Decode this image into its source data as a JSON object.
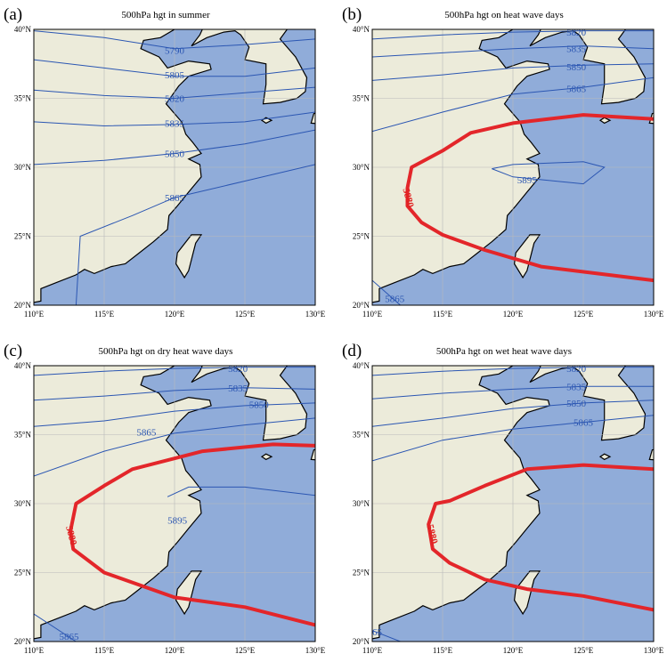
{
  "lon_ticks": [
    {
      "value": 110,
      "label": "110°E"
    },
    {
      "value": 115,
      "label": "115°E"
    },
    {
      "value": 120,
      "label": "120°E"
    },
    {
      "value": 125,
      "label": "125°E"
    },
    {
      "value": 130,
      "label": "130°E"
    }
  ],
  "lat_ticks": [
    {
      "value": 20,
      "label": "20°N"
    },
    {
      "value": 25,
      "label": "25°N"
    },
    {
      "value": 30,
      "label": "30°N"
    },
    {
      "value": 35,
      "label": "35°N"
    },
    {
      "value": 40,
      "label": "40°N"
    }
  ],
  "panels": [
    {
      "label": "(a)",
      "title": "500hPa hgt in summer",
      "contours": [
        5790,
        5805,
        5820,
        5835,
        5850,
        5865
      ]
    },
    {
      "label": "(b)",
      "title": "500hPa hgt on heat wave days",
      "contours": [
        5820,
        5835,
        5850,
        5865,
        5895,
        5865
      ],
      "highlight_contour": 5880
    },
    {
      "label": "(c)",
      "title": "500hPa hgt on dry heat wave days",
      "contours": [
        5820,
        5835,
        5850,
        5865,
        5895,
        5865
      ],
      "highlight_contour": 5880
    },
    {
      "label": "(d)",
      "title": "500hPa hgt on wet heat wave days",
      "contours": [
        5820,
        5835,
        5850,
        5865,
        5865
      ],
      "highlight_contour": 5880
    }
  ]
}
